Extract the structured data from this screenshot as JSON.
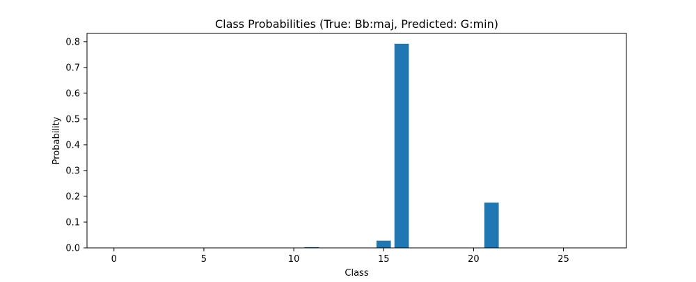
{
  "chart_data": {
    "type": "bar",
    "title": "Class Probabilities (True: Bb:maj, Predicted: G:min)",
    "xlabel": "Class",
    "ylabel": "Probability",
    "x": [
      0,
      1,
      2,
      3,
      4,
      5,
      6,
      7,
      8,
      9,
      10,
      11,
      12,
      13,
      14,
      15,
      16,
      17,
      18,
      19,
      20,
      21,
      22,
      23,
      24,
      25,
      26,
      27
    ],
    "values": [
      0.0,
      0.0,
      0.0,
      0.0,
      0.0,
      0.0,
      0.0,
      0.0,
      0.0,
      0.0,
      0.0,
      0.003,
      0.0,
      0.0,
      0.0,
      0.028,
      0.792,
      0.0,
      0.0,
      0.0,
      0.0,
      0.176,
      0.0,
      0.0,
      0.0,
      0.0,
      0.0,
      0.0
    ],
    "xlim": [
      -1.5,
      28.5
    ],
    "ylim": [
      0,
      0.832
    ],
    "xticks": [
      0,
      5,
      10,
      15,
      20,
      25
    ],
    "yticks": [
      0.0,
      0.1,
      0.2,
      0.3,
      0.4,
      0.5,
      0.6,
      0.7,
      0.8
    ],
    "xtick_labels": [
      "0",
      "5",
      "10",
      "15",
      "20",
      "25"
    ],
    "ytick_labels": [
      "0.0",
      "0.1",
      "0.2",
      "0.3",
      "0.4",
      "0.5",
      "0.6",
      "0.7",
      "0.8"
    ],
    "bar_color": "#1f77b4",
    "grid": false,
    "legend": false
  }
}
